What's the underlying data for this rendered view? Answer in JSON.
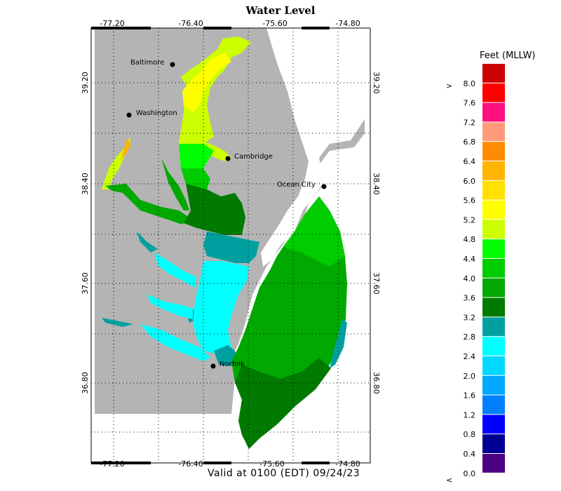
{
  "title": "Water Level",
  "valid_text": "Valid at 0100 (EDT) 09/24/23",
  "legend": {
    "title": "Feet (MLLW)",
    "upper_marker": ">",
    "lower_marker": "<",
    "entries": [
      {
        "label": "8.0",
        "color": "#cc0000"
      },
      {
        "label": "7.6",
        "color": "#ff0000"
      },
      {
        "label": "7.2",
        "color": "#ff0f7f"
      },
      {
        "label": "6.8",
        "color": "#ff9b79"
      },
      {
        "label": "6.4",
        "color": "#ff8c00"
      },
      {
        "label": "6.0",
        "color": "#ffb400"
      },
      {
        "label": "5.6",
        "color": "#ffe000"
      },
      {
        "label": "5.2",
        "color": "#ffff00"
      },
      {
        "label": "4.8",
        "color": "#ccff00"
      },
      {
        "label": "4.4",
        "color": "#00ff00"
      },
      {
        "label": "4.0",
        "color": "#00cc00"
      },
      {
        "label": "3.6",
        "color": "#00a800"
      },
      {
        "label": "3.2",
        "color": "#007a00"
      },
      {
        "label": "2.8",
        "color": "#00a0a0"
      },
      {
        "label": "2.4",
        "color": "#00ffff"
      },
      {
        "label": "2.0",
        "color": "#00d8ff"
      },
      {
        "label": "1.6",
        "color": "#00a8ff"
      },
      {
        "label": "1.2",
        "color": "#0080ff"
      },
      {
        "label": "0.8",
        "color": "#0000ff"
      },
      {
        "label": "0.4",
        "color": "#000090"
      },
      {
        "label": "0.0",
        "color": "#4b0082"
      }
    ]
  },
  "longitude_ticks": [
    "-77.20",
    "-76.40",
    "-75.60",
    "-74.80"
  ],
  "latitude_ticks": [
    "39.20",
    "38.40",
    "37.60",
    "36.80"
  ],
  "cities": [
    {
      "name": "Baltimore"
    },
    {
      "name": "Washington"
    },
    {
      "name": "Cambridge"
    },
    {
      "name": "Ocean City"
    },
    {
      "name": "Norfolk"
    }
  ],
  "colors": {
    "land": "#b4b4b4",
    "water_background": "#ffffff",
    "frame": "#000000"
  }
}
